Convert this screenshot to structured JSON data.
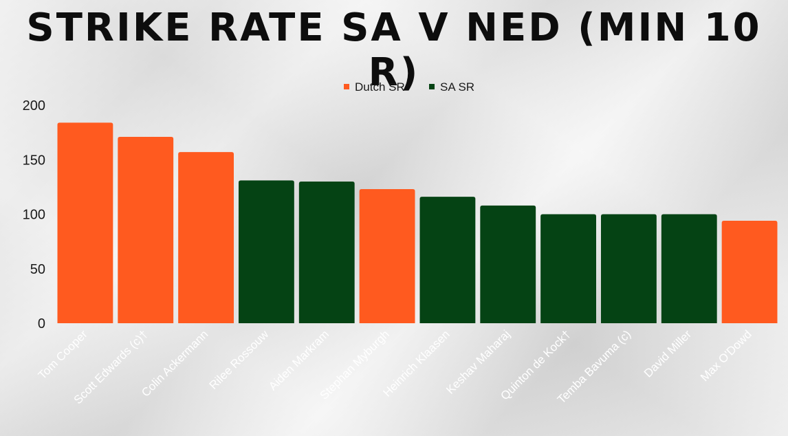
{
  "chart_data": {
    "type": "bar",
    "title": "STRIKE RATE SA V NED (MIN 10 R)",
    "categories": [
      "Tom Cooper",
      "Scott Edwards (c)†",
      "Colin Ackermann",
      "Rilee Rossouw",
      "Aiden Markram",
      "Stephan Myburgh",
      "Heinrich Klaasen",
      "Keshav Maharaj",
      "Quinton de Kock†",
      "Temba Bavuma (c)",
      "David Miller",
      "Max O'Dowd"
    ],
    "values": [
      184,
      171,
      157,
      131,
      130,
      123,
      116,
      108,
      100,
      100,
      100,
      94
    ],
    "series_of_bar": [
      "Dutch SR",
      "Dutch SR",
      "Dutch SR",
      "SA SR",
      "SA SR",
      "Dutch SR",
      "SA SR",
      "SA SR",
      "SA SR",
      "SA SR",
      "SA SR",
      "Dutch SR"
    ],
    "legend": [
      {
        "name": "Dutch SR",
        "color": "#ff5a1f"
      },
      {
        "name": "SA SR",
        "color": "#054314"
      }
    ],
    "legend_position": "top-center",
    "ylim": [
      0,
      200
    ],
    "yticks": [
      0,
      50,
      100,
      150,
      200
    ],
    "grid": false
  }
}
